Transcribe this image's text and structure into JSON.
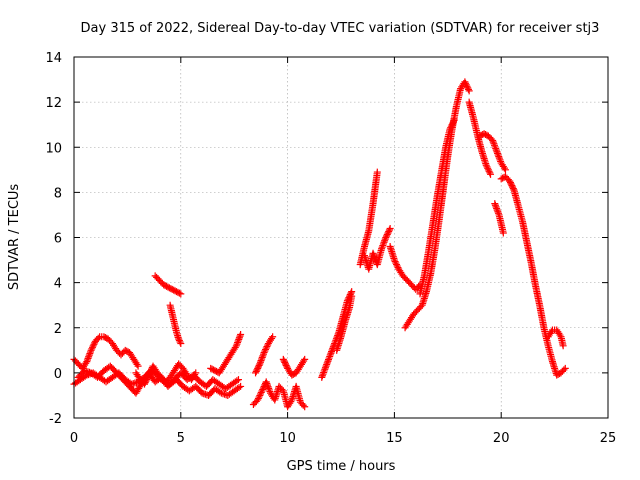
{
  "chart_data": {
    "type": "scatter",
    "title": "Day 315 of 2022, Sidereal Day-to-day VTEC variation (SDTVAR) for receiver stj3",
    "xlabel": "GPS time / hours",
    "ylabel": "SDTVAR / TECUs",
    "xlim": [
      0,
      25
    ],
    "ylim": [
      -2,
      14
    ],
    "xticks": [
      0,
      5,
      10,
      15,
      20,
      25
    ],
    "yticks": [
      -2,
      0,
      2,
      4,
      6,
      8,
      10,
      12,
      14
    ],
    "grid": true,
    "marker": "plus",
    "color": "#ff0000",
    "segments": [
      {
        "x": [
          0.0,
          0.3,
          0.6,
          0.9,
          1.2,
          1.5,
          1.8,
          2.1,
          2.4,
          2.7,
          3.0,
          3.3,
          3.6,
          3.9,
          4.2,
          4.5,
          4.8,
          5.1,
          5.4,
          5.7,
          6.0,
          6.3,
          6.6,
          6.9,
          7.2,
          7.5,
          7.8
        ],
        "y": [
          -0.5,
          -0.3,
          -0.1,
          0.0,
          -0.2,
          -0.4,
          -0.2,
          0.0,
          -0.3,
          -0.5,
          -0.4,
          -0.2,
          0.1,
          -0.1,
          -0.4,
          -0.5,
          -0.3,
          -0.6,
          -0.8,
          -0.6,
          -0.9,
          -1.0,
          -0.7,
          -0.9,
          -1.0,
          -0.8,
          -0.6
        ]
      },
      {
        "x": [
          0.0,
          0.2,
          0.4,
          0.6,
          0.8,
          1.0,
          1.2,
          1.4,
          1.6,
          1.8,
          2.0,
          2.2,
          2.4,
          2.6,
          2.8,
          3.0
        ],
        "y": [
          0.6,
          0.4,
          0.2,
          0.5,
          1.0,
          1.4,
          1.6,
          1.6,
          1.5,
          1.3,
          1.0,
          0.8,
          1.0,
          0.9,
          0.6,
          0.3
        ]
      },
      {
        "x": [
          0.2,
          0.5,
          0.8,
          1.1,
          1.4,
          1.7,
          2.0,
          2.3,
          2.6,
          2.9,
          3.2,
          3.5,
          3.8,
          4.1,
          4.4,
          4.7,
          5.0,
          5.3,
          5.6,
          5.9,
          6.2,
          6.5,
          6.8,
          7.1,
          7.4,
          7.7
        ],
        "y": [
          -0.2,
          0.1,
          0.0,
          -0.2,
          0.1,
          0.3,
          0.0,
          -0.3,
          -0.6,
          -0.9,
          -0.4,
          0.0,
          -0.4,
          -0.2,
          -0.6,
          -0.3,
          0.0,
          -0.3,
          -0.1,
          -0.4,
          -0.6,
          -0.3,
          -0.5,
          -0.7,
          -0.5,
          -0.3
        ]
      },
      {
        "x": [
          2.9,
          3.1,
          3.3,
          3.5,
          3.7,
          3.9,
          4.1,
          4.3,
          4.5,
          4.7,
          4.9,
          5.1,
          5.3,
          5.5,
          5.7
        ],
        "y": [
          0.0,
          -0.3,
          -0.5,
          -0.1,
          0.3,
          0.0,
          -0.2,
          -0.4,
          -0.2,
          0.1,
          0.4,
          0.2,
          -0.1,
          -0.3,
          0.0
        ]
      },
      {
        "x": [
          3.8,
          4.0,
          4.2,
          4.4,
          4.6,
          4.8,
          5.0
        ],
        "y": [
          4.3,
          4.1,
          3.9,
          3.8,
          3.7,
          3.6,
          3.5
        ]
      },
      {
        "x": [
          4.5,
          4.6,
          4.7,
          4.8,
          4.9,
          5.0
        ],
        "y": [
          3.0,
          2.6,
          2.2,
          1.8,
          1.5,
          1.3
        ]
      },
      {
        "x": [
          6.4,
          6.6,
          6.8,
          7.0,
          7.2,
          7.4,
          7.6,
          7.8
        ],
        "y": [
          0.2,
          0.1,
          0.0,
          0.3,
          0.6,
          0.9,
          1.2,
          1.7
        ]
      },
      {
        "x": [
          8.4,
          8.6,
          8.8,
          9.0,
          9.2,
          9.4,
          9.6,
          9.8,
          10.0,
          10.2,
          10.4,
          10.6,
          10.8
        ],
        "y": [
          -1.4,
          -1.2,
          -0.8,
          -0.4,
          -0.9,
          -1.2,
          -0.6,
          -0.8,
          -1.5,
          -1.2,
          -0.6,
          -1.3,
          -1.5
        ]
      },
      {
        "x": [
          8.5,
          8.7,
          8.9,
          9.1,
          9.3
        ],
        "y": [
          0.0,
          0.4,
          0.9,
          1.3,
          1.6
        ]
      },
      {
        "x": [
          9.8,
          10.0,
          10.2,
          10.4,
          10.6,
          10.8
        ],
        "y": [
          0.6,
          0.2,
          -0.1,
          0.0,
          0.3,
          0.6
        ]
      },
      {
        "x": [
          11.6,
          11.8,
          12.0,
          12.2,
          12.4,
          12.6,
          12.8,
          13.0
        ],
        "y": [
          -0.2,
          0.3,
          0.8,
          1.3,
          1.8,
          2.5,
          3.2,
          3.6
        ]
      },
      {
        "x": [
          12.3,
          12.5,
          12.7,
          12.9,
          13.0
        ],
        "y": [
          1.0,
          1.6,
          2.3,
          2.9,
          3.4
        ]
      },
      {
        "x": [
          13.4,
          13.6,
          13.8,
          14.0,
          14.2
        ],
        "y": [
          4.8,
          5.6,
          6.3,
          7.5,
          8.9
        ]
      },
      {
        "x": [
          13.6,
          13.8,
          14.0,
          14.2,
          14.4,
          14.6,
          14.8
        ],
        "y": [
          5.2,
          4.6,
          5.3,
          4.8,
          5.5,
          6.0,
          6.4
        ]
      },
      {
        "x": [
          14.8,
          15.0,
          15.2,
          15.4,
          15.6,
          15.8,
          16.0,
          16.2
        ],
        "y": [
          5.6,
          5.0,
          4.6,
          4.3,
          4.1,
          3.9,
          3.7,
          3.9
        ]
      },
      {
        "x": [
          15.5,
          15.7,
          15.9,
          16.1,
          16.3,
          16.5,
          16.7,
          16.9,
          17.1,
          17.3,
          17.5,
          17.7,
          17.9,
          18.1,
          18.3,
          18.5
        ],
        "y": [
          2.0,
          2.3,
          2.6,
          2.8,
          3.0,
          3.6,
          4.4,
          5.5,
          6.8,
          8.2,
          9.6,
          10.8,
          11.8,
          12.6,
          12.9,
          12.5
        ]
      },
      {
        "x": [
          16.2,
          16.4,
          16.6,
          16.8,
          17.0,
          17.2,
          17.4,
          17.6,
          17.8
        ],
        "y": [
          3.5,
          4.3,
          5.4,
          6.6,
          7.8,
          8.9,
          10.0,
          10.8,
          11.2
        ]
      },
      {
        "x": [
          18.5,
          18.7,
          18.9,
          19.1,
          19.3,
          19.5
        ],
        "y": [
          12.0,
          11.3,
          10.5,
          9.8,
          9.2,
          8.8
        ]
      },
      {
        "x": [
          19.0,
          19.2,
          19.4,
          19.6,
          19.8,
          20.0,
          20.2
        ],
        "y": [
          10.5,
          10.6,
          10.5,
          10.3,
          9.8,
          9.3,
          9.0
        ]
      },
      {
        "x": [
          19.7,
          19.9,
          20.1
        ],
        "y": [
          7.5,
          7.0,
          6.2
        ]
      },
      {
        "x": [
          20.0,
          20.2,
          20.4,
          20.6,
          20.8,
          21.0,
          21.2,
          21.4,
          21.6,
          21.8,
          22.0,
          22.2,
          22.4,
          22.6,
          22.8,
          23.0
        ],
        "y": [
          8.6,
          8.7,
          8.5,
          8.1,
          7.4,
          6.7,
          5.8,
          4.9,
          3.9,
          3.0,
          2.0,
          1.2,
          0.5,
          -0.1,
          0.0,
          0.2
        ]
      },
      {
        "x": [
          22.2,
          22.4,
          22.6,
          22.8,
          22.9
        ],
        "y": [
          1.6,
          1.9,
          1.9,
          1.6,
          1.2
        ]
      }
    ]
  }
}
